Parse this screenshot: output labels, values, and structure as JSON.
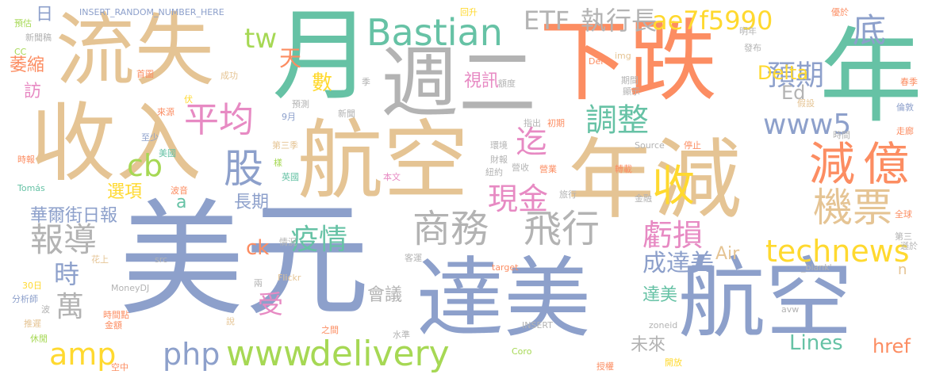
{
  "palette": {
    "blue": "#8da0cb",
    "green": "#66c2a5",
    "orange": "#fc8d62",
    "pink": "#e78ac3",
    "lime": "#a6d854",
    "yellow": "#ffd92f",
    "tan": "#e5c494",
    "gray": "#b3b3b3"
  },
  "words": [
    {
      "text": "美元"
    },
    {
      "text": "達美"
    },
    {
      "text": "航空"
    },
    {
      "text": "航空"
    },
    {
      "text": "收入"
    },
    {
      "text": "流失"
    },
    {
      "text": "下跌"
    },
    {
      "text": "週二"
    },
    {
      "text": "年減"
    },
    {
      "text": "月"
    },
    {
      "text": "年"
    },
    {
      "text": "商務"
    },
    {
      "text": "飛行"
    },
    {
      "text": "Bastian"
    },
    {
      "text": "delivery"
    },
    {
      "text": "www"
    },
    {
      "text": "technews"
    },
    {
      "text": "www5"
    },
    {
      "text": "報導"
    },
    {
      "text": "平均"
    },
    {
      "text": "股"
    },
    {
      "text": "收"
    },
    {
      "text": "迄"
    },
    {
      "text": "減"
    },
    {
      "text": "億"
    },
    {
      "text": "機票"
    },
    {
      "text": "虧損"
    },
    {
      "text": "調整"
    },
    {
      "text": "預期"
    },
    {
      "text": "底"
    },
    {
      "text": "ETF"
    },
    {
      "text": "執行長"
    },
    {
      "text": "ae7f5990"
    },
    {
      "text": "疫情"
    },
    {
      "text": "現金"
    },
    {
      "text": "成達美"
    },
    {
      "text": "amp"
    },
    {
      "text": "php"
    },
    {
      "text": "cb"
    },
    {
      "text": "tw"
    },
    {
      "text": "萬"
    },
    {
      "text": "時"
    },
    {
      "text": "華爾街日報"
    },
    {
      "text": "Delta"
    },
    {
      "text": "Ed"
    },
    {
      "text": "Lines"
    },
    {
      "text": "href"
    },
    {
      "text": "Air"
    },
    {
      "text": "會議"
    },
    {
      "text": "達美"
    },
    {
      "text": "未來"
    },
    {
      "text": "長期"
    },
    {
      "text": "選項"
    },
    {
      "text": "數"
    },
    {
      "text": "視訊"
    },
    {
      "text": "受"
    },
    {
      "text": "ck"
    },
    {
      "text": "天"
    },
    {
      "text": "日"
    },
    {
      "text": "萎縮"
    },
    {
      "text": "訪"
    },
    {
      "text": "a"
    },
    {
      "text": "n"
    },
    {
      "text": "INSERT_RANDOM_NUMBER_HERE"
    },
    {
      "text": "預估"
    },
    {
      "text": "新聞稿"
    },
    {
      "text": "CC"
    },
    {
      "text": "首圖"
    },
    {
      "text": "成功"
    },
    {
      "text": "伏"
    },
    {
      "text": "來源"
    },
    {
      "text": "9月"
    },
    {
      "text": "預測"
    },
    {
      "text": "新聞"
    },
    {
      "text": "季"
    },
    {
      "text": "至少"
    },
    {
      "text": "第三季"
    },
    {
      "text": "樣"
    },
    {
      "text": "美國"
    },
    {
      "text": "英國"
    },
    {
      "text": "時報"
    },
    {
      "text": "Tomás"
    },
    {
      "text": "波音"
    },
    {
      "text": "src"
    },
    {
      "text": "情況"
    },
    {
      "text": "客運"
    },
    {
      "text": "兩"
    },
    {
      "text": "Flickr"
    },
    {
      "text": "花上"
    },
    {
      "text": "30日"
    },
    {
      "text": "分析師"
    },
    {
      "text": "時間點"
    },
    {
      "text": "MoneyDJ"
    },
    {
      "text": "波"
    },
    {
      "text": "推遲"
    },
    {
      "text": "金額"
    },
    {
      "text": "說"
    },
    {
      "text": "休閒"
    },
    {
      "text": "空中"
    },
    {
      "text": "之間"
    },
    {
      "text": "INSERT"
    },
    {
      "text": "水準"
    },
    {
      "text": "Coro"
    },
    {
      "text": "授權"
    },
    {
      "text": "回升"
    },
    {
      "text": "Del"
    },
    {
      "text": "img"
    },
    {
      "text": "期間"
    },
    {
      "text": "顯示"
    },
    {
      "text": "明年"
    },
    {
      "text": "發布"
    },
    {
      "text": "優於"
    },
    {
      "text": "春季"
    },
    {
      "text": "假設"
    },
    {
      "text": "時間"
    },
    {
      "text": "倫敦"
    },
    {
      "text": "走廊"
    },
    {
      "text": "停止"
    },
    {
      "text": "Source"
    },
    {
      "text": "指出"
    },
    {
      "text": "初期"
    },
    {
      "text": "環境"
    },
    {
      "text": "財報"
    },
    {
      "text": "營收"
    },
    {
      "text": "紐約"
    },
    {
      "text": "營業"
    },
    {
      "text": "本文"
    },
    {
      "text": "旅行"
    },
    {
      "text": "轉載"
    },
    {
      "text": "金融"
    },
    {
      "text": "全球"
    },
    {
      "text": "第三"
    },
    {
      "text": "遜於"
    },
    {
      "text": "target"
    },
    {
      "text": "_blank'"
    },
    {
      "text": "avw"
    },
    {
      "text": "zoneid"
    },
    {
      "text": "開放"
    },
    {
      "text": "額度"
    }
  ]
}
